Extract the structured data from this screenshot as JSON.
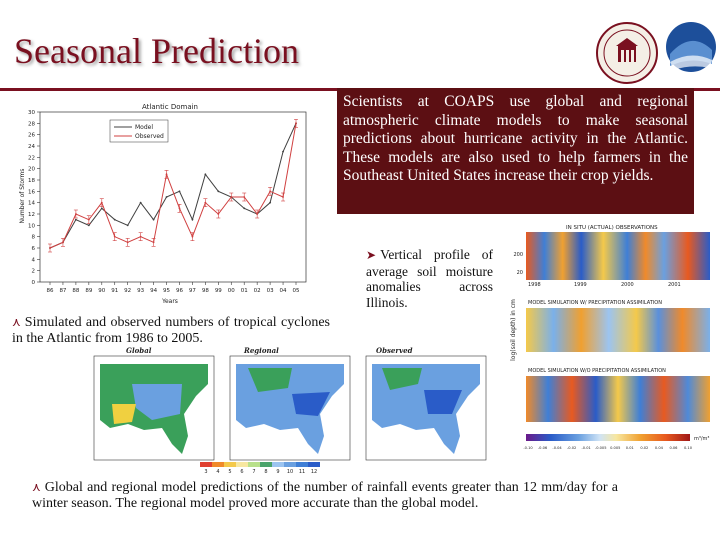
{
  "slide": {
    "title": "Seasonal Prediction",
    "description": "Scientists at COAPS use global and regional atmospheric climate models to make seasonal predictions about hurricane activity in the Atlantic. These models are also used to help farmers in the Southeast United States increase their crop yields.",
    "caption_cyclones": "Simulated and observed numbers of tropical cyclones in the Atlantic from 1986 to 2005.",
    "caption_soil": "Vertical profile of average soil moisture anomalies across Illinois.",
    "caption_rainfall": "Global and regional model predictions of the number of rainfall events greater than 12 mm/day for a winter season. The regional model proved more accurate than the global model.",
    "bullet_glyph": "⋏",
    "arrow_glyph": "➤"
  },
  "logos": {
    "seal_label": "FLORIDA STATE UNIVERSITY",
    "seal_year": "1851",
    "coaps_label": "COAPS"
  },
  "colors": {
    "accent": "#7a1020",
    "panel_bg": "#5c0f13",
    "model_line": "#404040",
    "observed_line": "#d04040"
  },
  "chart_data": {
    "type": "line",
    "title": "Atlantic Domain",
    "xlabel": "Years",
    "ylabel": "Number of Storms",
    "categories": [
      "86",
      "87",
      "88",
      "89",
      "90",
      "91",
      "92",
      "93",
      "94",
      "95",
      "96",
      "97",
      "98",
      "99",
      "00",
      "01",
      "02",
      "03",
      "04",
      "05"
    ],
    "series": [
      {
        "name": "Model",
        "values": [
          6,
          7,
          11,
          10,
          13,
          11,
          10,
          14,
          11,
          15,
          16,
          11,
          19,
          16,
          15,
          13,
          12,
          14,
          23,
          28
        ]
      },
      {
        "name": "Observed",
        "values": [
          6,
          7,
          12,
          11,
          14,
          8,
          7,
          8,
          7,
          19,
          13,
          8,
          14,
          12,
          15,
          15,
          12,
          16,
          15,
          28
        ]
      }
    ],
    "ylim": [
      0,
      30
    ],
    "yticks": [
      0,
      2,
      4,
      6,
      8,
      10,
      12,
      14,
      16,
      18,
      20,
      22,
      24,
      26,
      28,
      30
    ],
    "legend": "top-left"
  },
  "soil_panel": {
    "header": "IN SITU (ACTUAL) OBSERVATIONS",
    "mid1": "MODEL SIMULATION W/ PRECIPITATION ASSIMILATION",
    "mid2": "MODEL SIMULATION W/O PRECIPITATION ASSIMILATION",
    "ylabel": "log(soil depth) in cm",
    "years": [
      "1998",
      "1999",
      "2000",
      "2001"
    ],
    "depths": [
      "200",
      "20"
    ],
    "unit": "m³/m³",
    "scale": [
      "-0.10",
      "-0.06",
      "-0.04",
      "-0.02",
      "-0.01",
      "-0.005",
      "0.005",
      "0.01",
      "0.02",
      "0.04",
      "0.06",
      "0.10"
    ]
  },
  "maps": {
    "labels": [
      "Global",
      "Regional",
      "Observed"
    ],
    "legend_values": [
      "3",
      "4",
      "5",
      "6",
      "7",
      "8",
      "9",
      "10",
      "11",
      "12"
    ]
  }
}
